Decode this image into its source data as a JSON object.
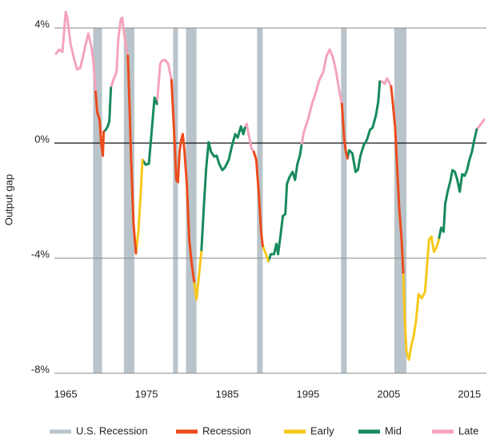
{
  "chart_data": {
    "type": "line",
    "y_label": "Output gap",
    "xlim": [
      1963.6,
      2017.1
    ],
    "ylim": [
      -8,
      4
    ],
    "xticks": [
      1965,
      1975,
      1985,
      1995,
      2005,
      2015
    ],
    "yticks": [
      {
        "value": 4,
        "label": "4%"
      },
      {
        "value": 0,
        "label": "0%"
      },
      {
        "value": -4,
        "label": "-4%"
      },
      {
        "value": -8,
        "label": "-8%"
      }
    ],
    "grid": true,
    "legend": "bottom",
    "recessions": {
      "name": "U.S. Recession",
      "color": "#b9c3ca",
      "periods": [
        [
          1968.4,
          1969.5
        ],
        [
          1972.2,
          1973.5
        ],
        [
          1978.3,
          1978.9
        ],
        [
          1979.9,
          1981.2
        ],
        [
          1988.7,
          1989.4
        ],
        [
          1999.1,
          1999.8
        ],
        [
          2005.7,
          2007.2
        ]
      ]
    },
    "series": [
      {
        "name": "Recession",
        "color": "#ec4b1c",
        "x": [
          1968.7,
          1968.9,
          1969.2,
          1969.4,
          1969.6,
          1969.7,
          null,
          1972.7,
          1972.9,
          1973.1,
          1973.4,
          1973.7,
          null,
          1978.1,
          1978.4,
          1978.7,
          1978.9,
          1979.1,
          1979.3,
          1979.5,
          1979.7,
          1980.0,
          1980.3,
          1980.6,
          1980.9,
          null,
          1988.3,
          1988.6,
          1988.9,
          1989.2,
          1989.4,
          null,
          1999.2,
          1999.5,
          1999.7,
          1999.9,
          null,
          2005.3,
          2005.5,
          2005.8,
          2006.0,
          2006.3,
          2006.6,
          2006.8
        ],
        "values": [
          1.78,
          1.08,
          0.81,
          -0.03,
          -0.44,
          0.39,
          null,
          3.03,
          1.36,
          -0.58,
          -2.81,
          -3.83,
          null,
          2.19,
          0.53,
          -1.28,
          -1.36,
          -0.31,
          0.11,
          0.31,
          -0.25,
          -1.42,
          -3.36,
          -4.19,
          -4.81,
          null,
          -0.31,
          -0.58,
          -1.69,
          -3.08,
          -3.58,
          null,
          1.36,
          0.11,
          -0.31,
          -0.53,
          null,
          1.97,
          1.42,
          0.53,
          -0.58,
          -2.25,
          -3.36,
          -4.5
        ]
      },
      {
        "name": "Early",
        "color": "#f7c81b",
        "x": [
          1973.7,
          1974.0,
          1974.3,
          1974.5,
          null,
          1980.9,
          1981.2,
          1981.5,
          1981.8,
          null,
          1989.4,
          1989.7,
          1990.1,
          null,
          2006.8,
          2007.0,
          2007.2,
          2007.5,
          2007.8,
          2008.1,
          2008.4,
          2008.7,
          2009.1,
          2009.5,
          2009.8,
          2010.0,
          2010.3,
          2010.6,
          2010.9,
          2011.2
        ],
        "values": [
          -3.83,
          -3.08,
          -1.69,
          -0.58,
          null,
          -4.81,
          -5.44,
          -4.61,
          -3.78,
          null,
          -3.58,
          -3.78,
          -4.11,
          null,
          -4.5,
          -6.14,
          -7.25,
          -7.53,
          -7.03,
          -6.69,
          -6.14,
          -5.25,
          -5.39,
          -5.17,
          -4.06,
          -3.36,
          -3.25,
          -3.78,
          -3.64,
          -3.36
        ]
      },
      {
        "name": "Mid",
        "color": "#178a5c",
        "x": [
          1969.7,
          1970.0,
          1970.2,
          1970.4,
          1970.6,
          null,
          1974.5,
          1974.9,
          1975.3,
          1975.6,
          1976.0,
          1976.3,
          null,
          1981.8,
          1982.1,
          1982.4,
          1982.7,
          1983.0,
          1983.4,
          1983.7,
          1984.0,
          1984.4,
          1984.7,
          1985.2,
          1985.6,
          1986.0,
          1986.3,
          1986.7,
          1987.0,
          1987.2,
          null,
          1990.1,
          1990.4,
          1990.8,
          1991.1,
          1991.3,
          1991.6,
          1991.9,
          1992.2,
          1992.4,
          1992.7,
          1993.1,
          1993.4,
          1993.7,
          1994.0,
          1994.2,
          null,
          1999.9,
          2000.1,
          2000.5,
          2000.9,
          2001.2,
          2001.5,
          2001.9,
          2002.3,
          2002.7,
          2003.0,
          2003.4,
          2003.7,
          2003.9,
          null,
          2011.2,
          2011.5,
          2011.8,
          2012.0,
          2012.3,
          2012.6,
          2012.9,
          2013.2,
          2013.5,
          2013.8,
          2014.1,
          2014.4,
          2014.7,
          2015.0,
          2015.3,
          2015.6,
          2015.9
        ],
        "values": [
          0.39,
          0.47,
          0.58,
          0.75,
          1.92,
          null,
          -0.58,
          -0.75,
          -0.72,
          0.25,
          1.58,
          1.36,
          null,
          -3.78,
          -2.25,
          -0.86,
          0.03,
          -0.31,
          -0.47,
          -0.44,
          -0.72,
          -0.94,
          -0.86,
          -0.58,
          -0.08,
          0.31,
          0.19,
          0.58,
          0.31,
          0.53,
          null,
          -4.11,
          -3.86,
          -3.86,
          -3.5,
          -3.86,
          -3.22,
          -2.53,
          -2.47,
          -1.42,
          -1.19,
          -1.0,
          -1.28,
          -0.72,
          -0.44,
          -0.08,
          null,
          -0.53,
          -0.25,
          -0.36,
          -1.0,
          -0.92,
          -0.44,
          -0.08,
          0.11,
          0.47,
          0.53,
          0.94,
          1.42,
          2.14,
          null,
          -3.36,
          -2.94,
          -3.08,
          -2.11,
          -1.69,
          -1.36,
          -0.94,
          -1.0,
          -1.28,
          -1.69,
          -1.08,
          -1.14,
          -0.94,
          -0.58,
          -0.31,
          0.11,
          0.47
        ]
      },
      {
        "name": "Late",
        "color": "#f5a3bb",
        "x": [
          1963.8,
          1964.2,
          1964.6,
          1964.8,
          1965.0,
          1965.2,
          1965.6,
          1966.0,
          1966.4,
          1966.8,
          1967.2,
          1967.6,
          1967.8,
          1968.2,
          1968.4,
          1968.7,
          null,
          1970.6,
          1970.9,
          1971.3,
          1971.5,
          1971.8,
          1972.0,
          1972.2,
          1972.5,
          1972.7,
          null,
          1976.3,
          1976.7,
          1976.9,
          1977.3,
          1977.7,
          1978.1,
          null,
          1987.2,
          1987.4,
          1987.7,
          1988.0,
          1988.3,
          null,
          1994.2,
          1994.5,
          1995.0,
          1995.5,
          1995.9,
          1996.4,
          1996.9,
          1997.3,
          1997.7,
          1998.1,
          1998.5,
          1998.9,
          1999.2,
          null,
          2003.9,
          2004.2,
          2004.5,
          2004.8,
          2005.0,
          2005.3,
          null,
          2015.9,
          2016.2,
          2016.5,
          2016.8
        ],
        "values": [
          3.11,
          3.25,
          3.17,
          3.86,
          4.56,
          4.36,
          3.44,
          2.97,
          2.56,
          2.61,
          3.08,
          3.58,
          3.81,
          3.31,
          2.89,
          1.78,
          null,
          1.92,
          2.19,
          2.47,
          3.58,
          4.28,
          4.36,
          3.86,
          3.31,
          3.03,
          null,
          1.36,
          2.75,
          2.86,
          2.89,
          2.75,
          2.19,
          null,
          0.53,
          0.67,
          0.25,
          -0.17,
          -0.31,
          null,
          -0.08,
          0.39,
          0.81,
          1.36,
          1.69,
          2.19,
          2.47,
          3.03,
          3.25,
          2.97,
          2.47,
          1.78,
          1.36,
          null,
          2.14,
          2.14,
          2.06,
          2.25,
          2.14,
          1.97,
          null,
          0.47,
          0.58,
          0.69,
          0.81
        ]
      }
    ]
  }
}
